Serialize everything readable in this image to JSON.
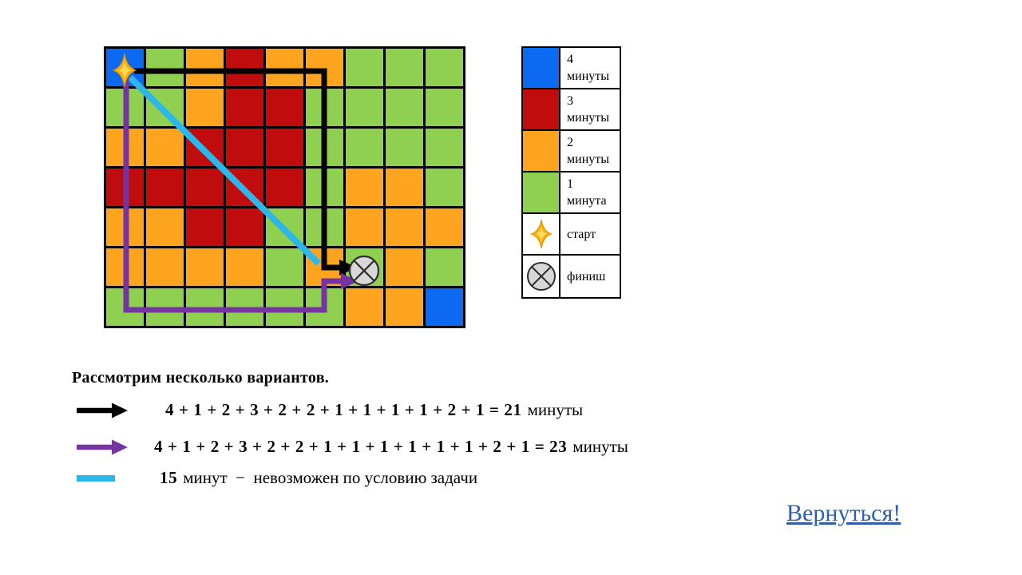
{
  "title": "Рассмотрим несколько вариантов.",
  "link_label": "Вернуться!",
  "colors": {
    "blue": "#0B69F2",
    "red": "#C00C0C",
    "orange": "#FFA41E",
    "green": "#8FD051",
    "purple": "#7633A2",
    "cyan": "#2BB7E9",
    "black": "#000000",
    "link_blue": "#2E5FA8",
    "star_gold": "#FFAF05",
    "star_gold_light": "#FFD95A",
    "finish_gray": "#D8D8D8",
    "finish_stroke": "#2F2F2F"
  },
  "grid": {
    "rows": 7,
    "cols": 9,
    "cells": [
      [
        "blue",
        "green",
        "orange",
        "red",
        "orange",
        "orange",
        "green",
        "green",
        "green"
      ],
      [
        "green",
        "green",
        "orange",
        "red",
        "red",
        "green",
        "green",
        "green",
        "green"
      ],
      [
        "orange",
        "orange",
        "red",
        "red",
        "red",
        "green",
        "green",
        "green",
        "green"
      ],
      [
        "red",
        "red",
        "red",
        "red",
        "red",
        "green",
        "orange",
        "orange",
        "green"
      ],
      [
        "orange",
        "orange",
        "red",
        "red",
        "green",
        "green",
        "orange",
        "orange",
        "orange"
      ],
      [
        "orange",
        "orange",
        "orange",
        "orange",
        "green",
        "orange",
        "green",
        "orange",
        "green"
      ],
      [
        "green",
        "green",
        "green",
        "green",
        "green",
        "green",
        "orange",
        "orange",
        "blue"
      ]
    ],
    "start_cell": [
      0,
      0
    ],
    "finish_cell": [
      5,
      6
    ]
  },
  "legend": {
    "items": [
      {
        "swatch": "blue",
        "lines": [
          "4",
          "минуты"
        ]
      },
      {
        "swatch": "red",
        "lines": [
          "3",
          "минуты"
        ]
      },
      {
        "swatch": "orange",
        "lines": [
          "2",
          "минуты"
        ]
      },
      {
        "swatch": "green",
        "lines": [
          "1",
          "минута"
        ]
      },
      {
        "swatch": "star",
        "lines": [
          "старт"
        ]
      },
      {
        "swatch": "finish",
        "lines": [
          "финиш"
        ]
      }
    ]
  },
  "paths": {
    "cyan": {
      "color": "cyan",
      "width": 8,
      "arrow": false,
      "points": [
        [
          33,
          39
        ],
        [
          269,
          272
        ]
      ]
    },
    "black": {
      "color": "black",
      "width": 7,
      "arrow": true,
      "points": [
        [
          38,
          31
        ],
        [
          276,
          31
        ],
        [
          276,
          277
        ],
        [
          296,
          277
        ]
      ]
    },
    "purple": {
      "color": "purple",
      "width": 7,
      "arrow": true,
      "points": [
        [
          28,
          38
        ],
        [
          28,
          330
        ],
        [
          276,
          330
        ],
        [
          276,
          294
        ],
        [
          298,
          294
        ]
      ]
    }
  },
  "equations": [
    {
      "route": "black",
      "sum": "4 + 1 + 2 + 3 + 2 + 2 + 1 + 1 + 1 + 1 + 2 + 1 = 21",
      "unit": "минуты"
    },
    {
      "route": "purple",
      "sum": "4 + 1 + 2 + 3 + 2 + 2 + 1 + 1 + 1 + 1 + 1 + 1 + 2 + 1 = 23",
      "unit": "минуты"
    },
    {
      "route": "cyan",
      "sum": "15",
      "unit": "минут  −  невозможен по условию задачи"
    }
  ]
}
